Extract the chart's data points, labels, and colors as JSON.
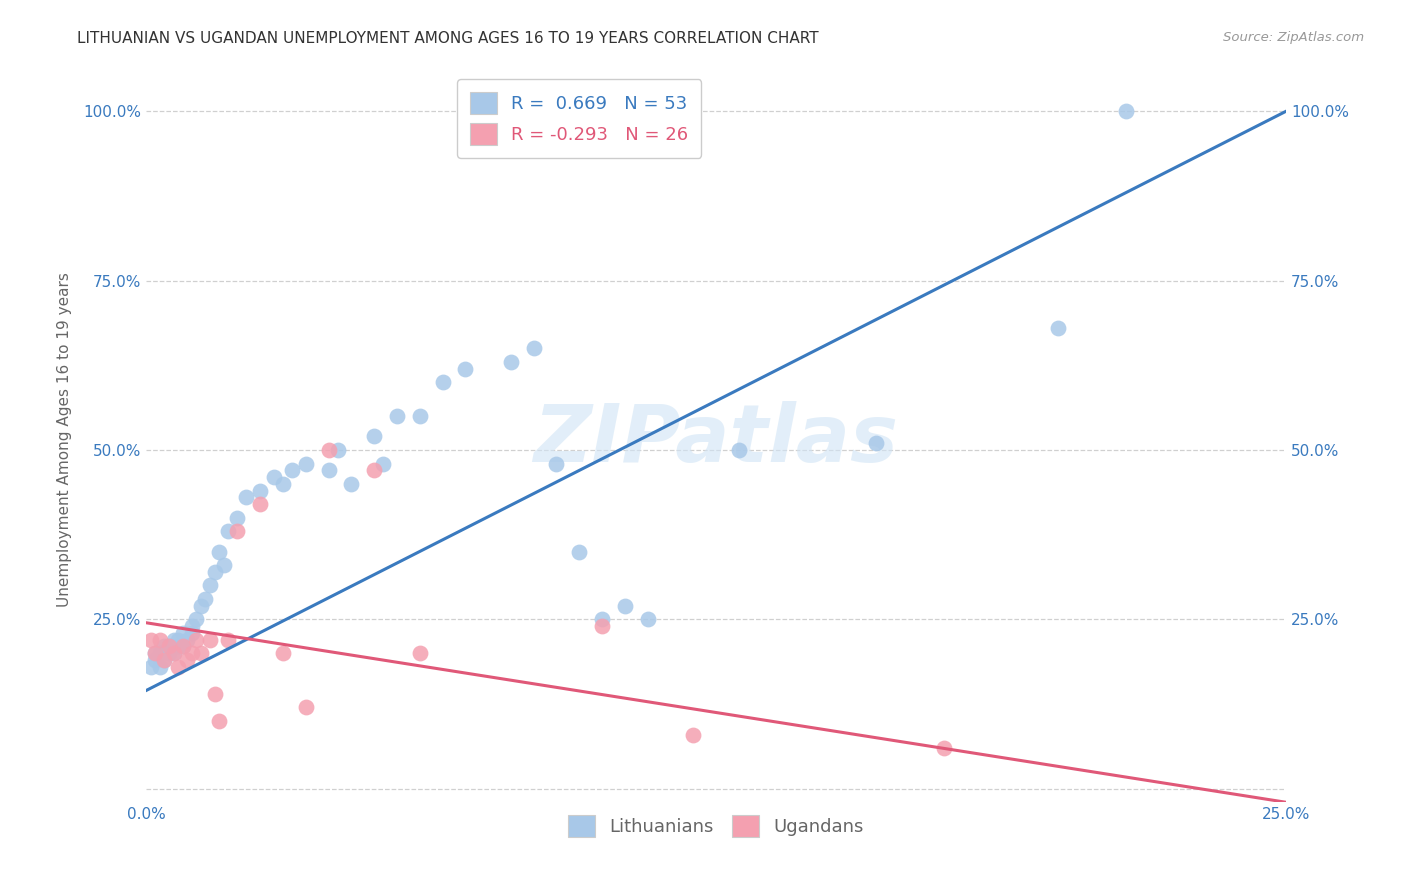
{
  "title": "LITHUANIAN VS UGANDAN UNEMPLOYMENT AMONG AGES 16 TO 19 YEARS CORRELATION CHART",
  "source": "Source: ZipAtlas.com",
  "ylabel": "Unemployment Among Ages 16 to 19 years",
  "xlim": [
    0.0,
    0.25
  ],
  "ylim": [
    -0.02,
    1.05
  ],
  "xticks": [
    0.0,
    0.05,
    0.1,
    0.15,
    0.2,
    0.25
  ],
  "yticks": [
    0.0,
    0.25,
    0.5,
    0.75,
    1.0
  ],
  "ytick_labels": [
    "",
    "25.0%",
    "50.0%",
    "75.0%",
    "100.0%"
  ],
  "xtick_labels": [
    "0.0%",
    "",
    "",
    "",
    "",
    "25.0%"
  ],
  "background_color": "#ffffff",
  "grid_color": "#d0d0d0",
  "watermark": "ZIPatlas",
  "legend_R_blue": "0.669",
  "legend_N_blue": "53",
  "legend_R_pink": "-0.293",
  "legend_N_pink": "26",
  "blue_color": "#a8c8e8",
  "pink_color": "#f4a0b0",
  "line_blue_color": "#3a7abf",
  "line_pink_color": "#e05878",
  "blue_scatter_x": [
    0.001,
    0.002,
    0.002,
    0.003,
    0.003,
    0.004,
    0.004,
    0.005,
    0.005,
    0.006,
    0.006,
    0.007,
    0.007,
    0.008,
    0.008,
    0.009,
    0.01,
    0.01,
    0.011,
    0.012,
    0.013,
    0.014,
    0.015,
    0.016,
    0.017,
    0.018,
    0.02,
    0.022,
    0.025,
    0.028,
    0.03,
    0.032,
    0.035,
    0.04,
    0.042,
    0.045,
    0.05,
    0.052,
    0.055,
    0.06,
    0.065,
    0.07,
    0.08,
    0.085,
    0.09,
    0.095,
    0.1,
    0.105,
    0.11,
    0.13,
    0.16,
    0.2,
    0.215
  ],
  "blue_scatter_y": [
    0.18,
    0.19,
    0.2,
    0.18,
    0.2,
    0.19,
    0.21,
    0.2,
    0.21,
    0.2,
    0.22,
    0.21,
    0.22,
    0.21,
    0.23,
    0.22,
    0.23,
    0.24,
    0.25,
    0.27,
    0.28,
    0.3,
    0.32,
    0.35,
    0.33,
    0.38,
    0.4,
    0.43,
    0.44,
    0.46,
    0.45,
    0.47,
    0.48,
    0.47,
    0.5,
    0.45,
    0.52,
    0.48,
    0.55,
    0.55,
    0.6,
    0.62,
    0.63,
    0.65,
    0.48,
    0.35,
    0.25,
    0.27,
    0.25,
    0.5,
    0.51,
    0.68,
    1.0
  ],
  "pink_scatter_x": [
    0.001,
    0.002,
    0.003,
    0.004,
    0.005,
    0.006,
    0.007,
    0.008,
    0.009,
    0.01,
    0.011,
    0.012,
    0.014,
    0.015,
    0.016,
    0.018,
    0.02,
    0.025,
    0.03,
    0.035,
    0.04,
    0.05,
    0.06,
    0.1,
    0.12,
    0.175
  ],
  "pink_scatter_y": [
    0.22,
    0.2,
    0.22,
    0.19,
    0.21,
    0.2,
    0.18,
    0.21,
    0.19,
    0.2,
    0.22,
    0.2,
    0.22,
    0.14,
    0.1,
    0.22,
    0.38,
    0.42,
    0.2,
    0.12,
    0.5,
    0.47,
    0.2,
    0.24,
    0.08,
    0.06
  ],
  "blue_line_x0": 0.0,
  "blue_line_y0": 0.145,
  "blue_line_x1": 0.25,
  "blue_line_y1": 1.0,
  "pink_line_x0": 0.0,
  "pink_line_y0": 0.245,
  "pink_line_x1": 0.25,
  "pink_line_y1": -0.02,
  "title_fontsize": 11,
  "axis_label_fontsize": 11,
  "tick_fontsize": 11,
  "legend_fontsize": 13
}
